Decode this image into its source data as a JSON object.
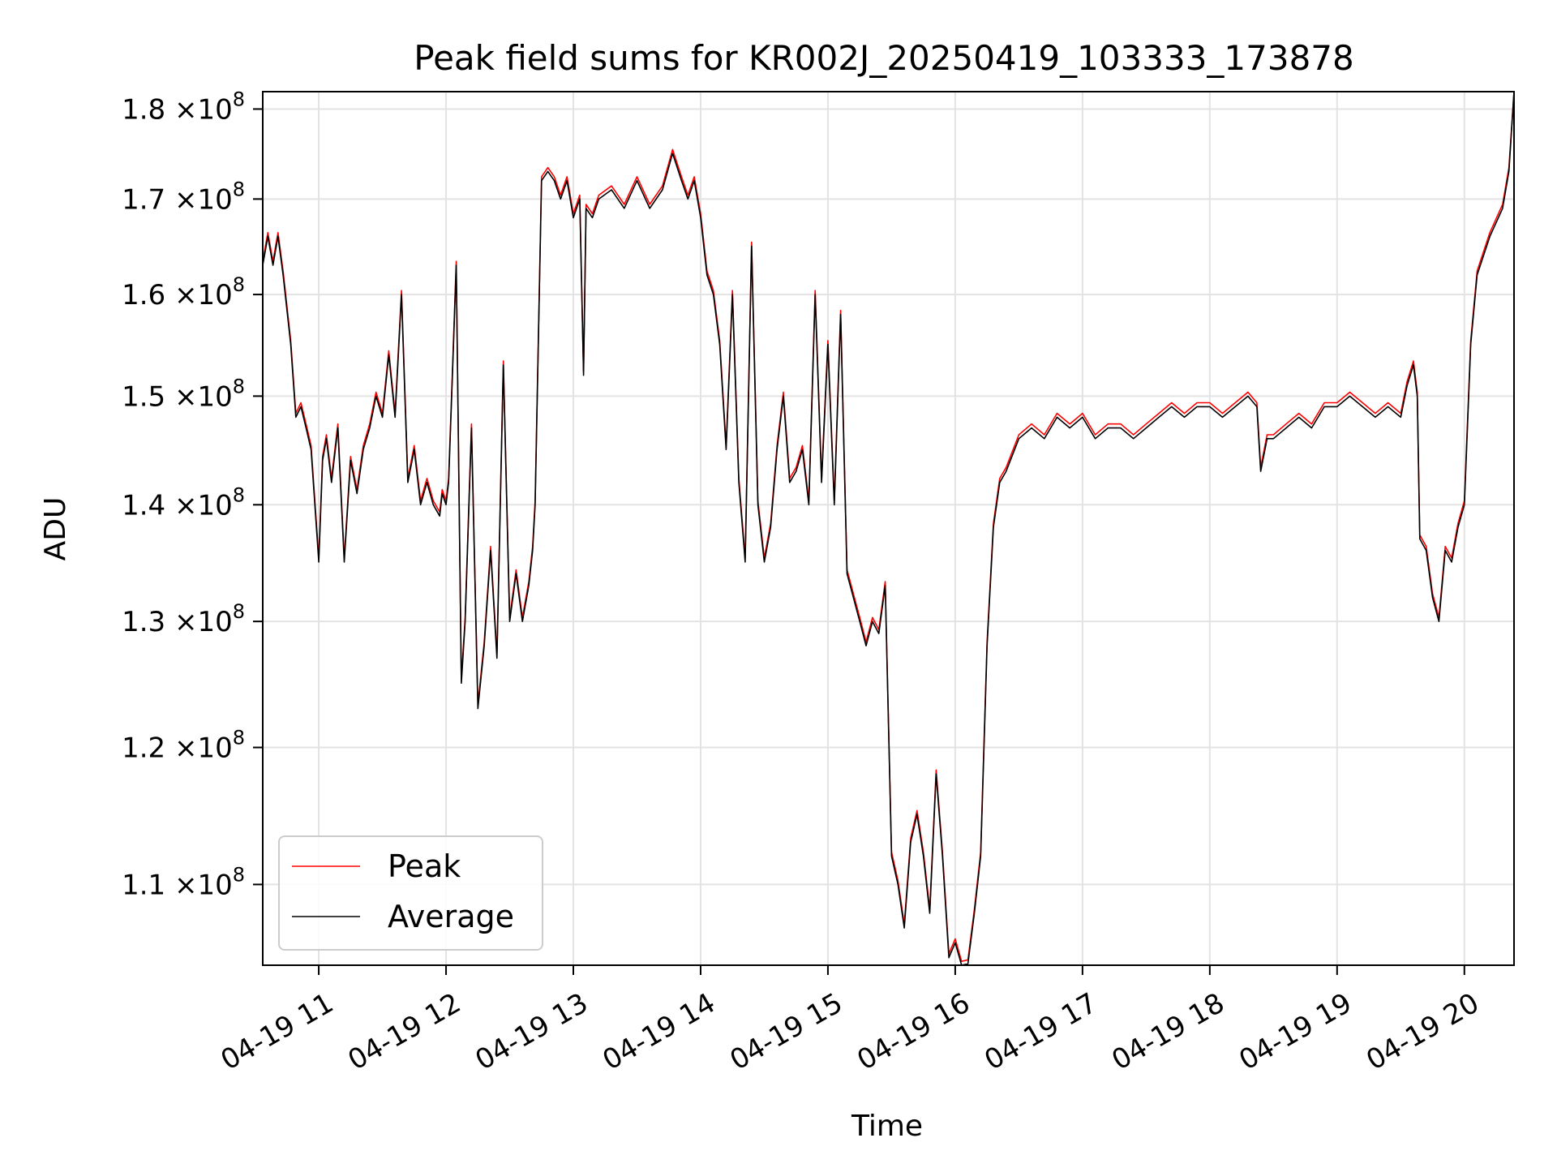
{
  "chart_data": {
    "type": "line",
    "title": "Peak field sums for KR002J_20250419_103333_173878",
    "xlabel": "Time",
    "ylabel": "ADU",
    "yscale": "log",
    "grid": true,
    "xlim": [
      10.56,
      20.39
    ],
    "ylim": [
      104500000.0,
      182000000.0
    ],
    "x_ticks": [
      {
        "value": 11,
        "label": "04-19 11"
      },
      {
        "value": 12,
        "label": "04-19 12"
      },
      {
        "value": 13,
        "label": "04-19 13"
      },
      {
        "value": 14,
        "label": "04-19 14"
      },
      {
        "value": 15,
        "label": "04-19 15"
      },
      {
        "value": 16,
        "label": "04-19 16"
      },
      {
        "value": 17,
        "label": "04-19 17"
      },
      {
        "value": 18,
        "label": "04-19 18"
      },
      {
        "value": 19,
        "label": "04-19 19"
      },
      {
        "value": 20,
        "label": "04-19 20"
      }
    ],
    "y_ticks": [
      {
        "value": 110000000.0,
        "mantissa": "1.1",
        "exp": "8"
      },
      {
        "value": 120000000.0,
        "mantissa": "1.2",
        "exp": "8"
      },
      {
        "value": 130000000.0,
        "mantissa": "1.3",
        "exp": "8"
      },
      {
        "value": 140000000.0,
        "mantissa": "1.4",
        "exp": "8"
      },
      {
        "value": 150000000.0,
        "mantissa": "1.5",
        "exp": "8"
      },
      {
        "value": 160000000.0,
        "mantissa": "1.6",
        "exp": "8"
      },
      {
        "value": 170000000.0,
        "mantissa": "1.7",
        "exp": "8"
      },
      {
        "value": 180000000.0,
        "mantissa": "1.8",
        "exp": "8"
      }
    ],
    "y_times_symbol": "×10",
    "legend_position": "lower-left",
    "series": [
      {
        "name": "Peak",
        "color": "#ff0000",
        "offset_ratio": 1.0025
      },
      {
        "name": "Average",
        "color": "#000000",
        "offset_ratio": 1.0
      }
    ],
    "x": [
      10.56,
      10.6,
      10.64,
      10.68,
      10.72,
      10.78,
      10.82,
      10.86,
      10.9,
      10.94,
      11.0,
      11.03,
      11.06,
      11.1,
      11.15,
      11.2,
      11.25,
      11.3,
      11.35,
      11.4,
      11.45,
      11.5,
      11.55,
      11.6,
      11.65,
      11.7,
      11.75,
      11.8,
      11.85,
      11.9,
      11.95,
      11.97,
      12.0,
      12.02,
      12.05,
      12.08,
      12.12,
      12.15,
      12.2,
      12.25,
      12.3,
      12.35,
      12.4,
      12.45,
      12.5,
      12.55,
      12.6,
      12.65,
      12.68,
      12.7,
      12.75,
      12.8,
      12.85,
      12.9,
      12.95,
      13.0,
      13.05,
      13.08,
      13.1,
      13.15,
      13.2,
      13.3,
      13.4,
      13.5,
      13.6,
      13.7,
      13.78,
      13.85,
      13.9,
      13.95,
      14.0,
      14.05,
      14.1,
      14.15,
      14.2,
      14.25,
      14.3,
      14.35,
      14.4,
      14.45,
      14.5,
      14.55,
      14.6,
      14.65,
      14.7,
      14.75,
      14.8,
      14.85,
      14.9,
      14.95,
      15.0,
      15.05,
      15.1,
      15.15,
      15.2,
      15.25,
      15.3,
      15.35,
      15.4,
      15.45,
      15.5,
      15.55,
      15.6,
      15.65,
      15.7,
      15.75,
      15.8,
      15.85,
      15.9,
      15.95,
      16.0,
      16.05,
      16.1,
      16.15,
      16.2,
      16.25,
      16.3,
      16.35,
      16.4,
      16.5,
      16.6,
      16.7,
      16.8,
      16.9,
      17.0,
      17.1,
      17.2,
      17.3,
      17.4,
      17.5,
      17.6,
      17.7,
      17.8,
      17.9,
      18.0,
      18.1,
      18.2,
      18.3,
      18.37,
      18.4,
      18.45,
      18.5,
      18.6,
      18.7,
      18.8,
      18.9,
      19.0,
      19.1,
      19.2,
      19.3,
      19.4,
      19.5,
      19.55,
      19.6,
      19.63,
      19.65,
      19.7,
      19.75,
      19.8,
      19.85,
      19.9,
      19.95,
      20.0,
      20.05,
      20.1,
      20.2,
      20.3,
      20.35,
      20.39
    ],
    "values": [
      163000000.0,
      166000000.0,
      163000000.0,
      166000000.0,
      162000000.0,
      155000000.0,
      148000000.0,
      149000000.0,
      147000000.0,
      145000000.0,
      135000000.0,
      144000000.0,
      146000000.0,
      142000000.0,
      147000000.0,
      135000000.0,
      144000000.0,
      141000000.0,
      145000000.0,
      147000000.0,
      150000000.0,
      148000000.0,
      154000000.0,
      148000000.0,
      160000000.0,
      142000000.0,
      145000000.0,
      140000000.0,
      142000000.0,
      140000000.0,
      139000000.0,
      141000000.0,
      140000000.0,
      142000000.0,
      152000000.0,
      163000000.0,
      125000000.0,
      130000000.0,
      147000000.0,
      123000000.0,
      128000000.0,
      136000000.0,
      127000000.0,
      153000000.0,
      130000000.0,
      134000000.0,
      130000000.0,
      133000000.0,
      136000000.0,
      140000000.0,
      172000000.0,
      173000000.0,
      172000000.0,
      170000000.0,
      172000000.0,
      168000000.0,
      170000000.0,
      152000000.0,
      169000000.0,
      168000000.0,
      170000000.0,
      171000000.0,
      169000000.0,
      172000000.0,
      169000000.0,
      171000000.0,
      175000000.0,
      172000000.0,
      170000000.0,
      172000000.0,
      168000000.0,
      162000000.0,
      160000000.0,
      155000000.0,
      145000000.0,
      160000000.0,
      142000000.0,
      135000000.0,
      165000000.0,
      140000000.0,
      135000000.0,
      138000000.0,
      145000000.0,
      150000000.0,
      142000000.0,
      143000000.0,
      145000000.0,
      140000000.0,
      160000000.0,
      142000000.0,
      155000000.0,
      140000000.0,
      158000000.0,
      134000000.0,
      132000000.0,
      130000000.0,
      128000000.0,
      130000000.0,
      129000000.0,
      133000000.0,
      112000000.0,
      110000000.0,
      107000000.0,
      113000000.0,
      115000000.0,
      112000000.0,
      108000000.0,
      118000000.0,
      112000000.0,
      105000000.0,
      106000000.0,
      104500000.0,
      104600000.0,
      108000000.0,
      112000000.0,
      128000000.0,
      138000000.0,
      142000000.0,
      143000000.0,
      146000000.0,
      147000000.0,
      146000000.0,
      148000000.0,
      147000000.0,
      148000000.0,
      146000000.0,
      147000000.0,
      147000000.0,
      146000000.0,
      147000000.0,
      148000000.0,
      149000000.0,
      148000000.0,
      149000000.0,
      149000000.0,
      148000000.0,
      149000000.0,
      150000000.0,
      149000000.0,
      143000000.0,
      146000000.0,
      146000000.0,
      147000000.0,
      148000000.0,
      147000000.0,
      149000000.0,
      149000000.0,
      150000000.0,
      149000000.0,
      148000000.0,
      149000000.0,
      148000000.0,
      151000000.0,
      153000000.0,
      150000000.0,
      137000000.0,
      136000000.0,
      132000000.0,
      130000000.0,
      136000000.0,
      135000000.0,
      138000000.0,
      140000000.0,
      155000000.0,
      162000000.0,
      166000000.0,
      169000000.0,
      173000000.0,
      182000000.0
    ]
  },
  "legend": {
    "peak_label": "Peak",
    "average_label": "Average"
  }
}
